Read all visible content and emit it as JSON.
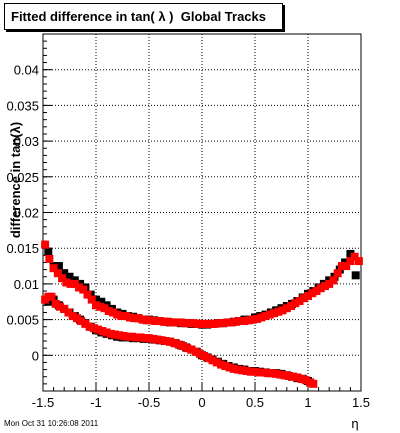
{
  "title": "Fitted difference in tan( λ )  Global Tracks",
  "timestamp": "Mon Oct 31 10:26:08 2011",
  "chart_data": {
    "type": "scatter",
    "xlabel": "η",
    "ylabel": "difference in tan(λ)",
    "xlim": [
      -1.5,
      1.5
    ],
    "ylim": [
      -0.005,
      0.045
    ],
    "x_ticks": [
      "-1.5",
      "-1",
      "-0.5",
      "0",
      "0.5",
      "1",
      "1.5"
    ],
    "y_ticks": [
      "0",
      "0.005",
      "0.01",
      "0.015",
      "0.02",
      "0.025",
      "0.03",
      "0.035",
      "0.04"
    ],
    "grid": true,
    "series": [
      {
        "color": "#000000",
        "x": [
          -1.45,
          -1.4,
          -1.35,
          -1.3,
          -1.25,
          -1.2,
          -1.15,
          -1.1,
          -1.05,
          -1.0,
          -0.95,
          -0.9,
          -0.85,
          -0.8,
          -0.75,
          -0.7,
          -0.65,
          -0.6,
          -0.55,
          -0.5,
          -0.45,
          -0.4,
          -0.35,
          -0.3,
          -0.25,
          -0.2,
          -0.15,
          -0.1,
          -0.05,
          0.0,
          0.05,
          0.1,
          0.15,
          0.2,
          0.25,
          0.3,
          0.35,
          0.4,
          0.45,
          0.5,
          0.55,
          0.6,
          0.65,
          0.7,
          0.75,
          0.8,
          0.85,
          0.9,
          0.95,
          1.0,
          1.05,
          1.1,
          1.15,
          1.2,
          1.25,
          1.3,
          1.35,
          1.4,
          1.45
        ],
        "y": [
          0.0145,
          0.0125,
          0.0125,
          0.0115,
          0.011,
          0.0105,
          0.01,
          0.0095,
          0.0085,
          0.0078,
          0.0075,
          0.007,
          0.0065,
          0.006,
          0.0058,
          0.0055,
          0.0054,
          0.0052,
          0.005,
          0.005,
          0.0049,
          0.0048,
          0.0047,
          0.0046,
          0.0046,
          0.0045,
          0.0045,
          0.0044,
          0.0044,
          0.0043,
          0.0043,
          0.0044,
          0.0045,
          0.0045,
          0.0046,
          0.0047,
          0.0048,
          0.005,
          0.005,
          0.0053,
          0.0055,
          0.0057,
          0.006,
          0.0063,
          0.0066,
          0.0069,
          0.0072,
          0.0076,
          0.0081,
          0.0086,
          0.009,
          0.0095,
          0.01,
          0.0105,
          0.011,
          0.012,
          0.013,
          0.0142,
          0.0112
        ]
      },
      {
        "color": "#000000",
        "x": [
          -1.45,
          -1.4,
          -1.35,
          -1.3,
          -1.25,
          -1.2,
          -1.15,
          -1.1,
          -1.05,
          -1.0,
          -0.95,
          -0.9,
          -0.85,
          -0.8,
          -0.75,
          -0.7,
          -0.65,
          -0.6,
          -0.55,
          -0.5,
          -0.45,
          -0.4,
          -0.35,
          -0.3,
          -0.25,
          -0.2,
          -0.15,
          -0.1,
          -0.05,
          0.0,
          0.05,
          0.1,
          0.15,
          0.2,
          0.25,
          0.3,
          0.35,
          0.4,
          0.45,
          0.5,
          0.55,
          0.6,
          0.65,
          0.7,
          0.75,
          0.8,
          0.85,
          0.9,
          0.95,
          1.0,
          1.02
        ],
        "y": [
          0.0075,
          0.0078,
          0.007,
          0.0065,
          0.006,
          0.0055,
          0.005,
          0.0045,
          0.004,
          0.0035,
          0.0032,
          0.003,
          0.0028,
          0.0026,
          0.0025,
          0.0025,
          0.0024,
          0.0024,
          0.0023,
          0.0023,
          0.0022,
          0.0021,
          0.002,
          0.0019,
          0.0017,
          0.0014,
          0.0011,
          0.0008,
          0.0005,
          0.0,
          -0.0003,
          -0.0006,
          -0.0009,
          -0.0012,
          -0.0015,
          -0.0017,
          -0.0019,
          -0.002,
          -0.0022,
          -0.0022,
          -0.0023,
          -0.0024,
          -0.0025,
          -0.0025,
          -0.0026,
          -0.0028,
          -0.003,
          -0.0032,
          -0.0033,
          -0.0036,
          -0.0038
        ]
      },
      {
        "color": "#ff0000",
        "x": [
          -1.48,
          -1.44,
          -1.4,
          -1.36,
          -1.32,
          -1.28,
          -1.24,
          -1.2,
          -1.16,
          -1.12,
          -1.08,
          -1.04,
          -1.0,
          -0.96,
          -0.92,
          -0.88,
          -0.84,
          -0.8,
          -0.76,
          -0.72,
          -0.68,
          -0.64,
          -0.6,
          -0.56,
          -0.52,
          -0.48,
          -0.44,
          -0.4,
          -0.36,
          -0.32,
          -0.28,
          -0.24,
          -0.2,
          -0.16,
          -0.12,
          -0.08,
          -0.04,
          0.0,
          0.04,
          0.08,
          0.12,
          0.16,
          0.2,
          0.24,
          0.28,
          0.32,
          0.36,
          0.4,
          0.44,
          0.48,
          0.52,
          0.56,
          0.6,
          0.64,
          0.68,
          0.72,
          0.76,
          0.8,
          0.84,
          0.88,
          0.92,
          0.96,
          1.0,
          1.04,
          1.08,
          1.12,
          1.16,
          1.2,
          1.24,
          1.28,
          1.32,
          1.36,
          1.4,
          1.44,
          1.48
        ],
        "y": [
          0.0155,
          0.0135,
          0.0122,
          0.0115,
          0.0108,
          0.0102,
          0.01,
          0.01,
          0.0095,
          0.0092,
          0.0085,
          0.0078,
          0.007,
          0.0068,
          0.0066,
          0.0062,
          0.006,
          0.0057,
          0.0055,
          0.0055,
          0.0053,
          0.0052,
          0.0052,
          0.005,
          0.0049,
          0.0049,
          0.0048,
          0.0048,
          0.0047,
          0.0047,
          0.0046,
          0.0046,
          0.0046,
          0.0045,
          0.0045,
          0.0045,
          0.0044,
          0.0044,
          0.0044,
          0.0044,
          0.0044,
          0.0045,
          0.0045,
          0.0046,
          0.0046,
          0.0047,
          0.0048,
          0.0048,
          0.0049,
          0.005,
          0.0051,
          0.0053,
          0.0055,
          0.0057,
          0.0059,
          0.0061,
          0.0063,
          0.0066,
          0.0069,
          0.0073,
          0.0076,
          0.008,
          0.0083,
          0.0087,
          0.009,
          0.0094,
          0.0097,
          0.01,
          0.0105,
          0.0115,
          0.0125,
          0.0125,
          0.0132,
          0.0138,
          0.0132
        ]
      },
      {
        "color": "#ff0000",
        "x": [
          -1.48,
          -1.45,
          -1.42,
          -1.38,
          -1.34,
          -1.3,
          -1.26,
          -1.22,
          -1.18,
          -1.14,
          -1.1,
          -1.06,
          -1.02,
          -0.98,
          -0.94,
          -0.9,
          -0.86,
          -0.82,
          -0.78,
          -0.74,
          -0.7,
          -0.66,
          -0.62,
          -0.58,
          -0.54,
          -0.5,
          -0.46,
          -0.42,
          -0.38,
          -0.34,
          -0.3,
          -0.26,
          -0.22,
          -0.18,
          -0.14,
          -0.1,
          -0.06,
          -0.02,
          0.02,
          0.06,
          0.1,
          0.14,
          0.18,
          0.22,
          0.26,
          0.3,
          0.34,
          0.38,
          0.42,
          0.46,
          0.5,
          0.54,
          0.58,
          0.62,
          0.66,
          0.7,
          0.74,
          0.78,
          0.82,
          0.86,
          0.9,
          0.94,
          0.98,
          1.02,
          1.05
        ],
        "y": [
          0.0078,
          0.0082,
          0.0082,
          0.0072,
          0.0068,
          0.0065,
          0.006,
          0.0055,
          0.0052,
          0.0048,
          0.0044,
          0.004,
          0.0038,
          0.0036,
          0.0034,
          0.0032,
          0.003,
          0.0029,
          0.0028,
          0.0027,
          0.0026,
          0.0026,
          0.0025,
          0.0025,
          0.0024,
          0.0024,
          0.0023,
          0.0022,
          0.0021,
          0.002,
          0.0019,
          0.0017,
          0.0015,
          0.0013,
          0.001,
          0.0008,
          0.0005,
          0.0002,
          -0.0001,
          -0.0004,
          -0.0007,
          -0.001,
          -0.0013,
          -0.0015,
          -0.0017,
          -0.0019,
          -0.002,
          -0.0021,
          -0.0022,
          -0.0023,
          -0.0023,
          -0.0024,
          -0.0024,
          -0.0025,
          -0.0025,
          -0.0026,
          -0.0027,
          -0.0028,
          -0.0029,
          -0.003,
          -0.0031,
          -0.0033,
          -0.0035,
          -0.0038,
          -0.004
        ]
      }
    ]
  }
}
